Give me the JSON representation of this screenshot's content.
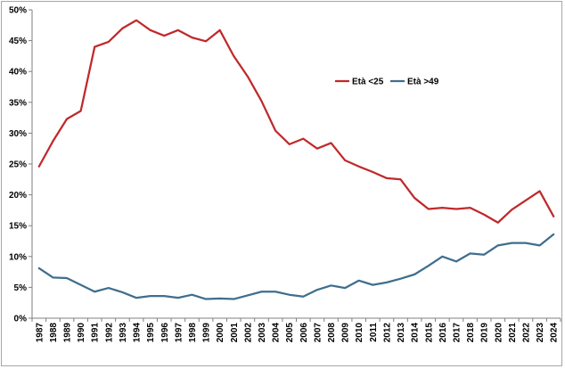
{
  "chart_data": {
    "type": "line",
    "title": "",
    "xlabel": "",
    "ylabel": "",
    "ylim": [
      0,
      50
    ],
    "y_ticks": [
      "0%",
      "5%",
      "10%",
      "15%",
      "20%",
      "25%",
      "30%",
      "35%",
      "40%",
      "45%",
      "50%"
    ],
    "y_tick_values": [
      0,
      5,
      10,
      15,
      20,
      25,
      30,
      35,
      40,
      45,
      50
    ],
    "grid": false,
    "legend_position": "upper-right",
    "x": [
      "1987",
      "1988",
      "1989",
      "1990",
      "1991",
      "1992",
      "1993",
      "1994",
      "1995",
      "1996",
      "1997",
      "1998",
      "1999",
      "2000",
      "2001",
      "2002",
      "2003",
      "2004",
      "2005",
      "2006",
      "2007",
      "2008",
      "2009",
      "2010",
      "2011",
      "2012",
      "2013",
      "2014",
      "2015",
      "2016",
      "2017",
      "2018",
      "2019",
      "2020",
      "2021",
      "2022",
      "2023",
      "2024"
    ],
    "series": [
      {
        "name": "Età <25",
        "color": "#c0292b",
        "values": [
          24.6,
          28.7,
          32.3,
          33.6,
          44.0,
          44.8,
          47.0,
          48.3,
          46.7,
          45.8,
          46.7,
          45.5,
          44.9,
          46.7,
          42.5,
          39.2,
          35.2,
          30.4,
          28.2,
          29.1,
          27.5,
          28.4,
          25.6,
          24.6,
          23.7,
          22.7,
          22.5,
          19.5,
          17.7,
          17.9,
          17.7,
          17.9,
          16.8,
          15.5,
          17.6,
          19.1,
          20.6,
          16.5
        ]
      },
      {
        "name": "Età >49",
        "color": "#3f6e8e",
        "values": [
          8.1,
          6.6,
          6.5,
          5.4,
          4.3,
          4.9,
          4.2,
          3.3,
          3.6,
          3.6,
          3.3,
          3.8,
          3.1,
          3.2,
          3.1,
          3.7,
          4.3,
          4.3,
          3.8,
          3.5,
          4.6,
          5.3,
          4.9,
          6.1,
          5.4,
          5.8,
          6.4,
          7.1,
          8.5,
          10.0,
          9.2,
          10.5,
          10.3,
          11.8,
          12.2,
          12.2,
          11.8,
          13.6
        ]
      }
    ]
  }
}
